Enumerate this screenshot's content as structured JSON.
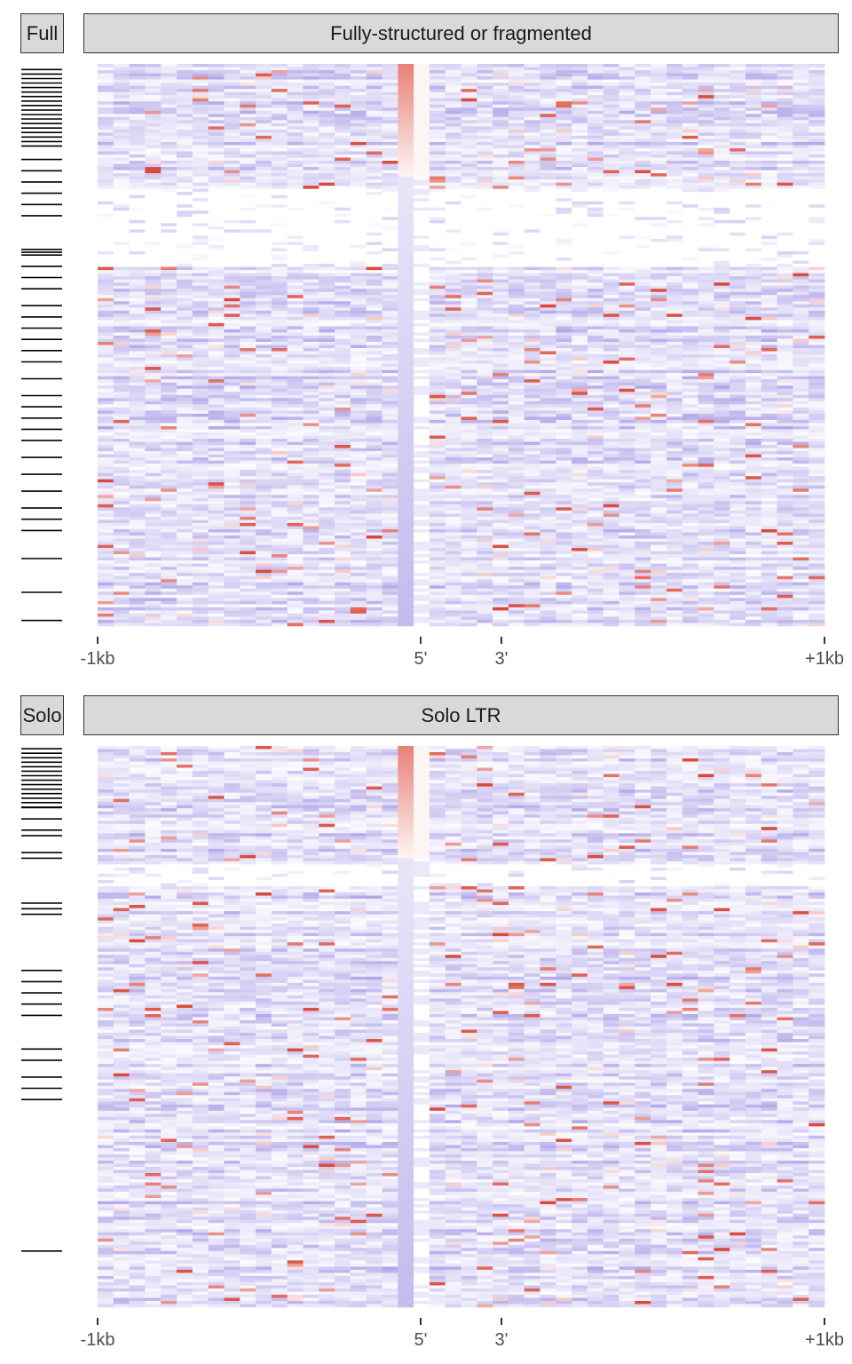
{
  "chart_data": [
    {
      "type": "heatmap",
      "panel_label": "Full",
      "title": "Fully-structured or fragmented",
      "x_ticks": [
        "-1kb",
        "5'",
        "3'",
        "+1kb"
      ],
      "annotation": "row marker bars on left (clustered at top, sparse below)",
      "colors": {
        "high": "#d7301f",
        "mid": "#ffffff",
        "low": "#7b68d9"
      },
      "rows_with_strong_signal": "top ~20% of rows show red near 5' boundary",
      "hot_column": "5'"
    },
    {
      "type": "heatmap",
      "panel_label": "Solo",
      "title": "Solo LTR",
      "x_ticks": [
        "-1kb",
        "5'",
        "3'",
        "+1kb"
      ],
      "annotation": "row marker bars on left (clustered at top, sparse below)",
      "colors": {
        "high": "#d7301f",
        "mid": "#ffffff",
        "low": "#7b68d9"
      },
      "rows_with_strong_signal": "top ~20% of rows show red near 5' boundary",
      "hot_column": "5'"
    }
  ]
}
